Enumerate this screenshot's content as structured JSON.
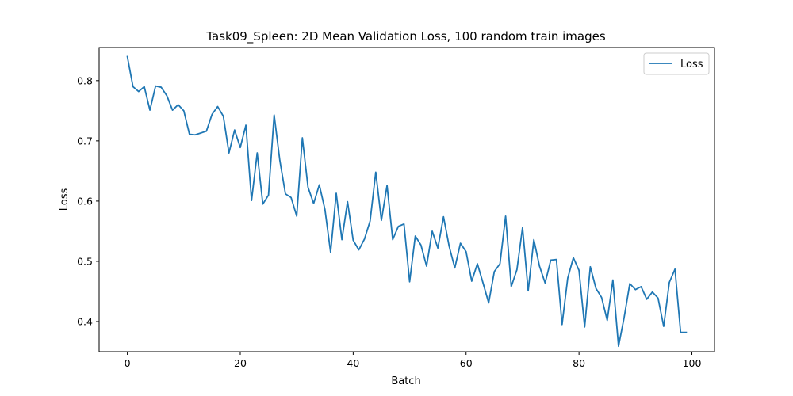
{
  "chart_data": {
    "type": "line",
    "title": "Task09_Spleen: 2D Mean Validation Loss, 100 random train images",
    "xlabel": "Batch",
    "ylabel": "Loss",
    "xlim": [
      -5,
      104
    ],
    "ylim": [
      0.35,
      0.855
    ],
    "xticks": [
      0,
      20,
      40,
      60,
      80,
      100
    ],
    "yticks": [
      0.4,
      0.5,
      0.6,
      0.7,
      0.8
    ],
    "xtick_labels": [
      "0",
      "20",
      "40",
      "60",
      "80",
      "100"
    ],
    "ytick_labels": [
      "0.4",
      "0.5",
      "0.6",
      "0.7",
      "0.8"
    ],
    "grid": false,
    "legend_position": "top-right",
    "series": [
      {
        "name": "Loss",
        "color": "#1f77b4",
        "x": [
          0,
          1,
          2,
          3,
          4,
          5,
          6,
          7,
          8,
          9,
          10,
          11,
          12,
          13,
          14,
          15,
          16,
          17,
          18,
          19,
          20,
          21,
          22,
          23,
          24,
          25,
          26,
          27,
          28,
          29,
          30,
          31,
          32,
          33,
          34,
          35,
          36,
          37,
          38,
          39,
          40,
          41,
          42,
          43,
          44,
          45,
          46,
          47,
          48,
          49,
          50,
          51,
          52,
          53,
          54,
          55,
          56,
          57,
          58,
          59,
          60,
          61,
          62,
          63,
          64,
          65,
          66,
          67,
          68,
          69,
          70,
          71,
          72,
          73,
          74,
          75,
          76,
          77,
          78,
          79,
          80,
          81,
          82,
          83,
          84,
          85,
          86,
          87,
          88,
          89,
          90,
          91,
          92,
          93,
          94,
          95,
          96,
          97,
          98,
          99
        ],
        "values": [
          0.84,
          0.79,
          0.782,
          0.79,
          0.751,
          0.791,
          0.789,
          0.775,
          0.751,
          0.76,
          0.75,
          0.711,
          0.71,
          0.713,
          0.716,
          0.744,
          0.757,
          0.741,
          0.68,
          0.718,
          0.689,
          0.726,
          0.601,
          0.68,
          0.595,
          0.61,
          0.743,
          0.668,
          0.612,
          0.606,
          0.575,
          0.705,
          0.623,
          0.596,
          0.627,
          0.586,
          0.515,
          0.613,
          0.536,
          0.599,
          0.535,
          0.519,
          0.537,
          0.567,
          0.648,
          0.568,
          0.626,
          0.536,
          0.558,
          0.562,
          0.466,
          0.542,
          0.527,
          0.492,
          0.55,
          0.522,
          0.574,
          0.525,
          0.489,
          0.53,
          0.516,
          0.467,
          0.496,
          0.464,
          0.431,
          0.483,
          0.496,
          0.575,
          0.458,
          0.486,
          0.556,
          0.451,
          0.536,
          0.492,
          0.464,
          0.502,
          0.503,
          0.395,
          0.472,
          0.506,
          0.485,
          0.391,
          0.491,
          0.455,
          0.44,
          0.402,
          0.469,
          0.359,
          0.407,
          0.463,
          0.453,
          0.458,
          0.437,
          0.449,
          0.439,
          0.392,
          0.465,
          0.487,
          0.382,
          0.382
        ]
      }
    ]
  }
}
